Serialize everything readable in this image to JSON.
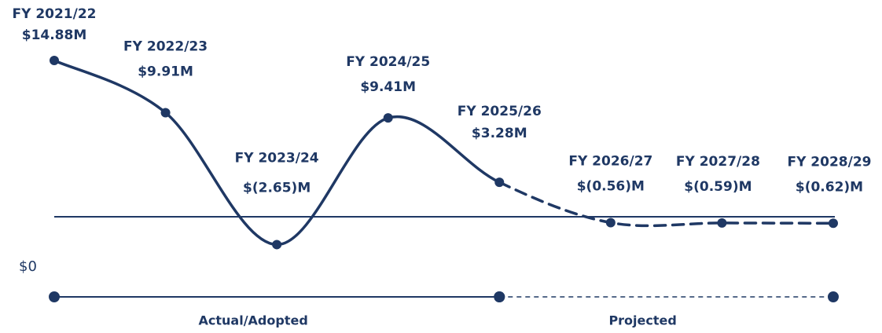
{
  "chart_data": {
    "type": "line",
    "categories": [
      "FY 2021/22",
      "FY 2022/23",
      "FY 2023/24",
      "FY 2024/25",
      "FY 2025/26",
      "FY 2026/27",
      "FY 2027/28",
      "FY 2028/29"
    ],
    "series": [
      {
        "color": "#1f3864",
        "values": [
          14.88,
          9.91,
          -2.65,
          9.41,
          3.28,
          -0.56,
          -0.59,
          -0.62
        ],
        "value_labels": [
          "$14.88M",
          "$9.91M",
          "$(2.65)M",
          "$9.41M",
          "$3.28M",
          "$(0.56)M",
          "$(0.59)M",
          "$(0.62)M"
        ]
      }
    ],
    "ylim": [
      -4,
      16
    ],
    "yticks": [
      {
        "value": 0,
        "label": "$0"
      }
    ],
    "periods": [
      {
        "label": "Actual/Adopted",
        "from": "FY 2021/22",
        "to": "FY 2025/26",
        "style": "solid"
      },
      {
        "label": "Projected",
        "from": "FY 2025/26",
        "to": "FY 2028/29",
        "style": "dashed"
      }
    ]
  }
}
